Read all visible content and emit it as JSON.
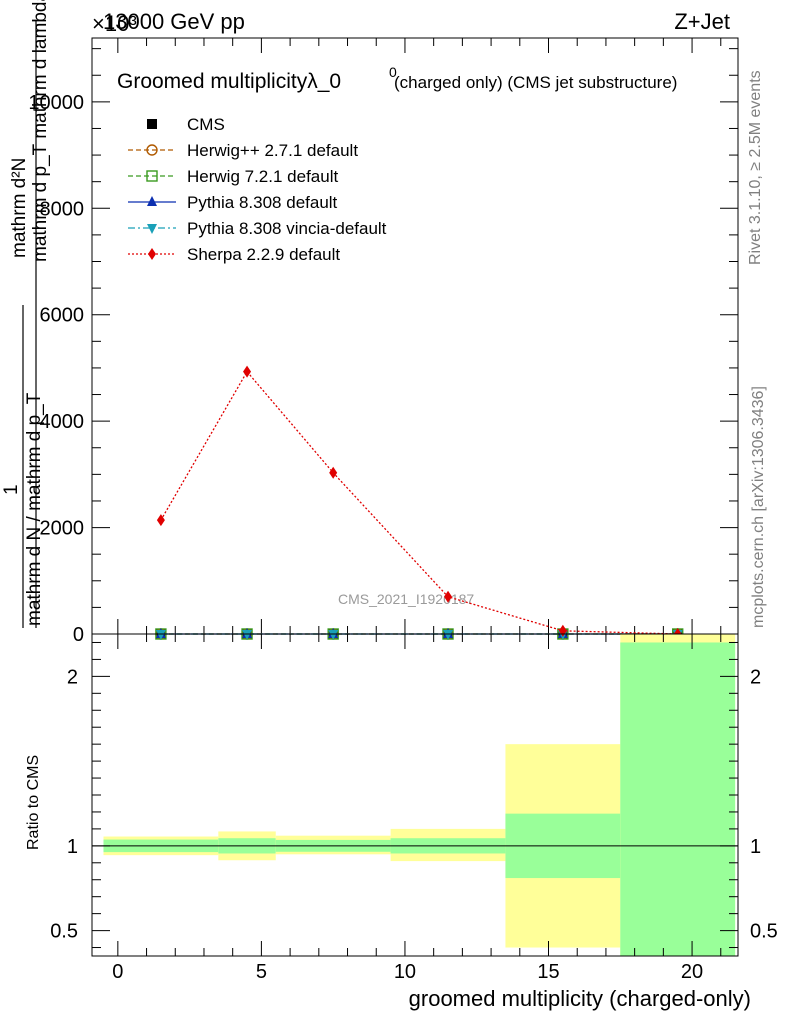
{
  "header": {
    "left": "13000 GeV pp",
    "right": "Z+Jet",
    "exponent": "×10³"
  },
  "side": {
    "rivet": "Rivet 3.1.10, ≥ 2.5M events",
    "mcplots": "mcplots.cern.ch [arXiv:1306.3436]"
  },
  "colors": {
    "cms": "#000000",
    "herwigpp": "#b05a00",
    "herwig7": "#3a9a20",
    "pythia": "#0b2fb0",
    "vincia": "#1aa0b8",
    "sherpa": "#e00000",
    "band_inner": "#99ff99",
    "band_outer": "#ffff99"
  },
  "chart_data": [
    {
      "type": "line",
      "title": "Groomed multiplicityλ_0",
      "title_sup": "0",
      "title_suffix": "(charged only) (CMS jet substructure)",
      "ylabel_top": "mathrm d²N",
      "ylabel_top_sub": "mathrm d p_T mathrm d lambda",
      "ylabel_one": "1",
      "ylabel_bottom": "mathrm d N / mathrm d p_T",
      "watermark": "CMS_2021_I1920187",
      "xlim": [
        -0.9,
        21.6
      ],
      "ylim": [
        0,
        11200
      ],
      "y_ticks": [
        {
          "value": 0,
          "label": "0"
        },
        {
          "value": 2000,
          "label": "2000"
        },
        {
          "value": 4000,
          "label": "4000"
        },
        {
          "value": 6000,
          "label": "6000"
        },
        {
          "value": 8000,
          "label": "8000"
        },
        {
          "value": 10000,
          "label": "10000"
        }
      ],
      "legend_position": "top-left",
      "legend": [
        {
          "name": "CMS",
          "marker": "square-filled",
          "color": "#000000",
          "style": "none"
        },
        {
          "name": "Herwig++ 2.7.1 default",
          "marker": "circle-open",
          "color": "#b05a00",
          "style": "dashed"
        },
        {
          "name": "Herwig 7.2.1 default",
          "marker": "square-open",
          "color": "#3a9a20",
          "style": "dashed"
        },
        {
          "name": "Pythia 8.308 default",
          "marker": "triangle-up",
          "color": "#0b2fb0",
          "style": "solid"
        },
        {
          "name": "Pythia 8.308 vincia-default",
          "marker": "triangle-down",
          "color": "#1aa0b8",
          "style": "dashdot"
        },
        {
          "name": "Sherpa 2.2.9 default",
          "marker": "diamond",
          "color": "#e00000",
          "style": "dotted"
        }
      ],
      "x": [
        1.5,
        4.5,
        7.5,
        11.5,
        15.5,
        19.5
      ],
      "series": [
        {
          "name": "CMS",
          "values": [
            0,
            0,
            0,
            0,
            0,
            0
          ]
        },
        {
          "name": "Herwig++ 2.7.1 default",
          "values": [
            0,
            0,
            0,
            0,
            0,
            0
          ]
        },
        {
          "name": "Herwig 7.2.1 default",
          "values": [
            0,
            0,
            0,
            0,
            0,
            0
          ]
        },
        {
          "name": "Pythia 8.308 default",
          "values": [
            0,
            0,
            0,
            0,
            0,
            0
          ]
        },
        {
          "name": "Pythia 8.308 vincia-default",
          "values": [
            0,
            0,
            0,
            0,
            0,
            0
          ]
        },
        {
          "name": "Sherpa 2.2.9 default",
          "values": [
            2140,
            4930,
            3030,
            700,
            60,
            0
          ]
        }
      ]
    },
    {
      "type": "area",
      "ylabel": "Ratio to CMS",
      "xlabel": "groomed multiplicity (charged-only)",
      "xlim": [
        -0.9,
        21.6
      ],
      "ylim": [
        0.35,
        2.25
      ],
      "x_ticks": [
        0,
        5,
        10,
        15,
        20
      ],
      "y_ticks": [
        {
          "value": 0.5,
          "label": "0.5"
        },
        {
          "value": 1,
          "label": "1"
        },
        {
          "value": 2,
          "label": "2"
        }
      ],
      "bins": [
        {
          "lo": -0.5,
          "hi": 3.5,
          "inner": [
            0.963,
            1.037
          ],
          "outer": [
            0.945,
            1.055
          ]
        },
        {
          "lo": 3.5,
          "hi": 5.5,
          "inner": [
            0.955,
            1.045
          ],
          "outer": [
            0.915,
            1.085
          ]
        },
        {
          "lo": 5.5,
          "hi": 9.5,
          "inner": [
            0.965,
            1.035
          ],
          "outer": [
            0.95,
            1.06
          ]
        },
        {
          "lo": 9.5,
          "hi": 13.5,
          "inner": [
            0.955,
            1.045
          ],
          "outer": [
            0.91,
            1.1
          ]
        },
        {
          "lo": 13.5,
          "hi": 17.5,
          "inner": [
            0.81,
            1.19
          ],
          "outer": [
            0.4,
            1.6
          ]
        },
        {
          "lo": 17.5,
          "hi": 21.5,
          "inner": [
            0.35,
            2.2
          ],
          "outer": [
            0.35,
            2.25
          ]
        }
      ],
      "reference": 1
    }
  ]
}
